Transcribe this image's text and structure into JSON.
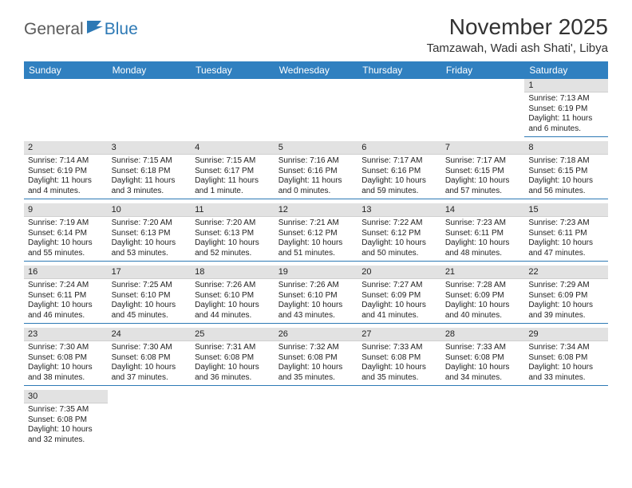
{
  "logo": {
    "text1": "General",
    "text2": "Blue"
  },
  "title": "November 2025",
  "location": "Tamzawah, Wadi ash Shati', Libya",
  "colors": {
    "header_bg": "#3080c0",
    "header_fg": "#ffffff",
    "daynum_bg": "#e2e2e2",
    "cell_border": "#2d79b5",
    "logo_gray": "#5a5a5a",
    "logo_blue": "#2d79b5"
  },
  "day_headers": [
    "Sunday",
    "Monday",
    "Tuesday",
    "Wednesday",
    "Thursday",
    "Friday",
    "Saturday"
  ],
  "weeks": [
    [
      null,
      null,
      null,
      null,
      null,
      null,
      {
        "n": "1",
        "sr": "Sunrise: 7:13 AM",
        "ss": "Sunset: 6:19 PM",
        "dl": "Daylight: 11 hours and 6 minutes."
      }
    ],
    [
      {
        "n": "2",
        "sr": "Sunrise: 7:14 AM",
        "ss": "Sunset: 6:19 PM",
        "dl": "Daylight: 11 hours and 4 minutes."
      },
      {
        "n": "3",
        "sr": "Sunrise: 7:15 AM",
        "ss": "Sunset: 6:18 PM",
        "dl": "Daylight: 11 hours and 3 minutes."
      },
      {
        "n": "4",
        "sr": "Sunrise: 7:15 AM",
        "ss": "Sunset: 6:17 PM",
        "dl": "Daylight: 11 hours and 1 minute."
      },
      {
        "n": "5",
        "sr": "Sunrise: 7:16 AM",
        "ss": "Sunset: 6:16 PM",
        "dl": "Daylight: 11 hours and 0 minutes."
      },
      {
        "n": "6",
        "sr": "Sunrise: 7:17 AM",
        "ss": "Sunset: 6:16 PM",
        "dl": "Daylight: 10 hours and 59 minutes."
      },
      {
        "n": "7",
        "sr": "Sunrise: 7:17 AM",
        "ss": "Sunset: 6:15 PM",
        "dl": "Daylight: 10 hours and 57 minutes."
      },
      {
        "n": "8",
        "sr": "Sunrise: 7:18 AM",
        "ss": "Sunset: 6:15 PM",
        "dl": "Daylight: 10 hours and 56 minutes."
      }
    ],
    [
      {
        "n": "9",
        "sr": "Sunrise: 7:19 AM",
        "ss": "Sunset: 6:14 PM",
        "dl": "Daylight: 10 hours and 55 minutes."
      },
      {
        "n": "10",
        "sr": "Sunrise: 7:20 AM",
        "ss": "Sunset: 6:13 PM",
        "dl": "Daylight: 10 hours and 53 minutes."
      },
      {
        "n": "11",
        "sr": "Sunrise: 7:20 AM",
        "ss": "Sunset: 6:13 PM",
        "dl": "Daylight: 10 hours and 52 minutes."
      },
      {
        "n": "12",
        "sr": "Sunrise: 7:21 AM",
        "ss": "Sunset: 6:12 PM",
        "dl": "Daylight: 10 hours and 51 minutes."
      },
      {
        "n": "13",
        "sr": "Sunrise: 7:22 AM",
        "ss": "Sunset: 6:12 PM",
        "dl": "Daylight: 10 hours and 50 minutes."
      },
      {
        "n": "14",
        "sr": "Sunrise: 7:23 AM",
        "ss": "Sunset: 6:11 PM",
        "dl": "Daylight: 10 hours and 48 minutes."
      },
      {
        "n": "15",
        "sr": "Sunrise: 7:23 AM",
        "ss": "Sunset: 6:11 PM",
        "dl": "Daylight: 10 hours and 47 minutes."
      }
    ],
    [
      {
        "n": "16",
        "sr": "Sunrise: 7:24 AM",
        "ss": "Sunset: 6:11 PM",
        "dl": "Daylight: 10 hours and 46 minutes."
      },
      {
        "n": "17",
        "sr": "Sunrise: 7:25 AM",
        "ss": "Sunset: 6:10 PM",
        "dl": "Daylight: 10 hours and 45 minutes."
      },
      {
        "n": "18",
        "sr": "Sunrise: 7:26 AM",
        "ss": "Sunset: 6:10 PM",
        "dl": "Daylight: 10 hours and 44 minutes."
      },
      {
        "n": "19",
        "sr": "Sunrise: 7:26 AM",
        "ss": "Sunset: 6:10 PM",
        "dl": "Daylight: 10 hours and 43 minutes."
      },
      {
        "n": "20",
        "sr": "Sunrise: 7:27 AM",
        "ss": "Sunset: 6:09 PM",
        "dl": "Daylight: 10 hours and 41 minutes."
      },
      {
        "n": "21",
        "sr": "Sunrise: 7:28 AM",
        "ss": "Sunset: 6:09 PM",
        "dl": "Daylight: 10 hours and 40 minutes."
      },
      {
        "n": "22",
        "sr": "Sunrise: 7:29 AM",
        "ss": "Sunset: 6:09 PM",
        "dl": "Daylight: 10 hours and 39 minutes."
      }
    ],
    [
      {
        "n": "23",
        "sr": "Sunrise: 7:30 AM",
        "ss": "Sunset: 6:08 PM",
        "dl": "Daylight: 10 hours and 38 minutes."
      },
      {
        "n": "24",
        "sr": "Sunrise: 7:30 AM",
        "ss": "Sunset: 6:08 PM",
        "dl": "Daylight: 10 hours and 37 minutes."
      },
      {
        "n": "25",
        "sr": "Sunrise: 7:31 AM",
        "ss": "Sunset: 6:08 PM",
        "dl": "Daylight: 10 hours and 36 minutes."
      },
      {
        "n": "26",
        "sr": "Sunrise: 7:32 AM",
        "ss": "Sunset: 6:08 PM",
        "dl": "Daylight: 10 hours and 35 minutes."
      },
      {
        "n": "27",
        "sr": "Sunrise: 7:33 AM",
        "ss": "Sunset: 6:08 PM",
        "dl": "Daylight: 10 hours and 35 minutes."
      },
      {
        "n": "28",
        "sr": "Sunrise: 7:33 AM",
        "ss": "Sunset: 6:08 PM",
        "dl": "Daylight: 10 hours and 34 minutes."
      },
      {
        "n": "29",
        "sr": "Sunrise: 7:34 AM",
        "ss": "Sunset: 6:08 PM",
        "dl": "Daylight: 10 hours and 33 minutes."
      }
    ],
    [
      {
        "n": "30",
        "sr": "Sunrise: 7:35 AM",
        "ss": "Sunset: 6:08 PM",
        "dl": "Daylight: 10 hours and 32 minutes."
      },
      null,
      null,
      null,
      null,
      null,
      null
    ]
  ]
}
